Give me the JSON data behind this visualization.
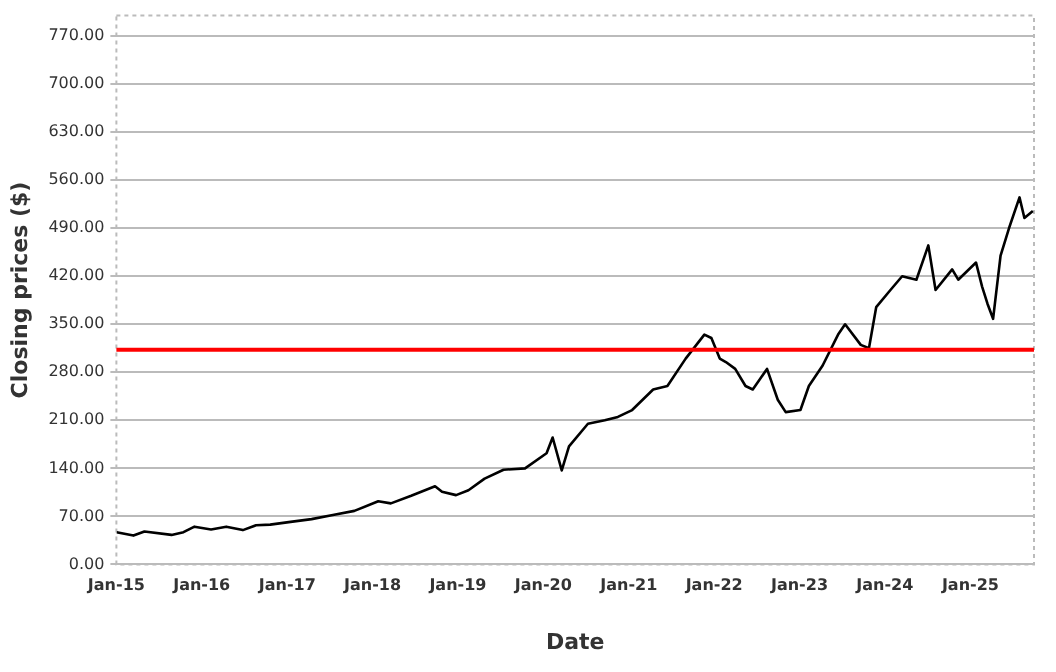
{
  "chart_data": {
    "type": "line",
    "xlabel": "Date",
    "ylabel": "Closing prices ($)",
    "x": [
      "2015-01-02",
      "2015-03-15",
      "2015-05-01",
      "2015-08-25",
      "2015-10-15",
      "2015-12-01",
      "2016-02-10",
      "2016-04-15",
      "2016-06-25",
      "2016-08-20",
      "2016-10-20",
      "2017-01-15",
      "2017-04-15",
      "2017-07-15",
      "2017-10-15",
      "2018-01-25",
      "2018-03-20",
      "2018-06-15",
      "2018-09-25",
      "2018-10-25",
      "2018-12-24",
      "2019-02-15",
      "2019-04-25",
      "2019-07-15",
      "2019-10-15",
      "2020-01-15",
      "2020-02-10",
      "2020-03-20",
      "2020-04-20",
      "2020-07-10",
      "2020-09-20",
      "2020-11-15",
      "2021-01-15",
      "2021-04-15",
      "2021-06-15",
      "2021-09-01",
      "2021-11-20",
      "2021-12-20",
      "2022-01-25",
      "2022-02-20",
      "2022-04-01",
      "2022-05-15",
      "2022-06-15",
      "2022-08-15",
      "2022-09-30",
      "2022-11-03",
      "2023-01-05",
      "2023-02-10",
      "2023-04-10",
      "2023-06-15",
      "2023-07-15",
      "2023-09-20",
      "2023-10-25",
      "2023-11-25",
      "2024-01-25",
      "2024-03-15",
      "2024-05-15",
      "2024-07-05",
      "2024-08-05",
      "2024-10-15",
      "2024-11-10",
      "2025-01-25",
      "2025-02-20",
      "2025-03-15",
      "2025-04-08",
      "2025-05-10",
      "2025-06-15",
      "2025-07-30",
      "2025-08-20",
      "2025-09-25"
    ],
    "series": [
      {
        "color": "#000000",
        "values": [
          47,
          42,
          48,
          43,
          47,
          55,
          51,
          55,
          50,
          57,
          58,
          62,
          66,
          72,
          78,
          92,
          89,
          100,
          114,
          106,
          101,
          108,
          125,
          138,
          140,
          162,
          185,
          137,
          172,
          205,
          210,
          215,
          225,
          255,
          260,
          300,
          335,
          330,
          300,
          295,
          285,
          260,
          255,
          285,
          240,
          222,
          225,
          260,
          290,
          335,
          350,
          320,
          315,
          375,
          400,
          420,
          415,
          465,
          400,
          430,
          415,
          440,
          405,
          380,
          358,
          450,
          490,
          535,
          505,
          515
        ]
      }
    ],
    "xlim": [
      "2015-01-01",
      "2025-09-30"
    ],
    "xticks": [
      {
        "value": "2015-01-01",
        "label": "Jan-15"
      },
      {
        "value": "2016-01-01",
        "label": "Jan-16"
      },
      {
        "value": "2017-01-01",
        "label": "Jan-17"
      },
      {
        "value": "2018-01-01",
        "label": "Jan-18"
      },
      {
        "value": "2019-01-01",
        "label": "Jan-19"
      },
      {
        "value": "2020-01-01",
        "label": "Jan-20"
      },
      {
        "value": "2021-01-01",
        "label": "Jan-21"
      },
      {
        "value": "2022-01-01",
        "label": "Jan-22"
      },
      {
        "value": "2023-01-01",
        "label": "Jan-23"
      },
      {
        "value": "2024-01-01",
        "label": "Jan-24"
      },
      {
        "value": "2025-01-01",
        "label": "Jan-25"
      }
    ],
    "ylim": [
      0,
      800
    ],
    "yticks": [
      {
        "value": 0,
        "label": "0.00"
      },
      {
        "value": 70,
        "label": "70.00"
      },
      {
        "value": 140,
        "label": "140.00"
      },
      {
        "value": 210,
        "label": "210.00"
      },
      {
        "value": 280,
        "label": "280.00"
      },
      {
        "value": 350,
        "label": "350.00"
      },
      {
        "value": 420,
        "label": "420.00"
      },
      {
        "value": 490,
        "label": "490.00"
      },
      {
        "value": 560,
        "label": "560.00"
      },
      {
        "value": 630,
        "label": "630.00"
      },
      {
        "value": 700,
        "label": "700.00"
      },
      {
        "value": 770,
        "label": "770.00"
      }
    ],
    "ref_lines": [
      {
        "axis": "y",
        "value": 313,
        "color": "#ff0000",
        "line_style": "solid"
      }
    ],
    "grid": "y",
    "legend": false,
    "marker": "none",
    "line_style": "solid"
  }
}
